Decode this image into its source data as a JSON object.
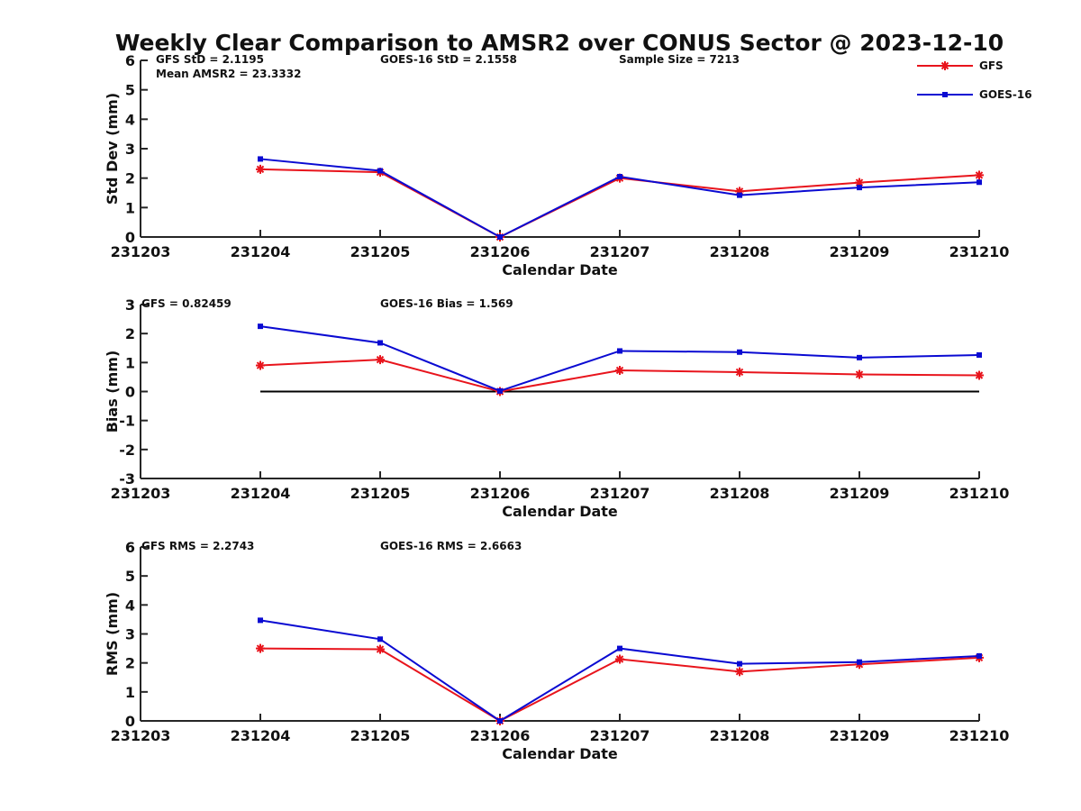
{
  "title": "Weekly Clear Comparison to AMSR2 over CONUS Sector @ 2023-12-10",
  "colors": {
    "gfs": "#e8141c",
    "goes": "#0a0ad2",
    "axis": "#262626",
    "zero_line": "#000000"
  },
  "legend": {
    "placement": "top-right",
    "entries": [
      {
        "label": "GFS",
        "color": "#e8141c",
        "marker": "asterisk"
      },
      {
        "label": "GOES-16",
        "color": "#0a0ad2",
        "marker": "square"
      }
    ]
  },
  "chart_data": [
    {
      "type": "line",
      "xlabel": "Calendar Date",
      "ylabel": "Std Dev (mm)",
      "x": [
        231203,
        231204,
        231205,
        231206,
        231207,
        231208,
        231209,
        231210
      ],
      "xticklabels": [
        "231203",
        "231204",
        "231205",
        "231206",
        "231207",
        "231208",
        "231209",
        "231210"
      ],
      "ylim": [
        0,
        6
      ],
      "yticks": [
        0,
        1,
        2,
        3,
        4,
        5,
        6
      ],
      "zero_line": false,
      "annotations": {
        "gfs": "GFS StD = 2.1195",
        "goes": "GOES-16 StD = 2.1558",
        "extra": "Mean AMSR2 = 23.3332",
        "sample": "Sample Size = 7213"
      },
      "series": [
        {
          "name": "GFS",
          "x": [
            231204,
            231205,
            231206,
            231207,
            231208,
            231209,
            231210
          ],
          "values": [
            2.3,
            2.2,
            0.0,
            2.0,
            1.55,
            1.85,
            2.1
          ]
        },
        {
          "name": "GOES-16",
          "x": [
            231204,
            231205,
            231206,
            231207,
            231208,
            231209,
            231210
          ],
          "values": [
            2.65,
            2.25,
            0.0,
            2.05,
            1.42,
            1.68,
            1.86
          ]
        }
      ]
    },
    {
      "type": "line",
      "xlabel": "Calendar Date",
      "ylabel": "Bias (mm)",
      "x": [
        231203,
        231204,
        231205,
        231206,
        231207,
        231208,
        231209,
        231210
      ],
      "xticklabels": [
        "231203",
        "231204",
        "231205",
        "231206",
        "231207",
        "231208",
        "231209",
        "231210"
      ],
      "ylim": [
        -3,
        3
      ],
      "yticks": [
        -3,
        -2,
        -1,
        0,
        1,
        2,
        3
      ],
      "zero_line": true,
      "annotations": {
        "gfs": "GFS = 0.82459",
        "goes": "GOES-16 Bias  = 1.569"
      },
      "series": [
        {
          "name": "GFS",
          "x": [
            231204,
            231205,
            231206,
            231207,
            231208,
            231209,
            231210
          ],
          "values": [
            0.9,
            1.1,
            0.0,
            0.73,
            0.67,
            0.59,
            0.56
          ]
        },
        {
          "name": "GOES-16",
          "x": [
            231204,
            231205,
            231206,
            231207,
            231208,
            231209,
            231210
          ],
          "values": [
            2.25,
            1.68,
            0.02,
            1.4,
            1.36,
            1.17,
            1.26
          ]
        }
      ]
    },
    {
      "type": "line",
      "xlabel": "Calendar Date",
      "ylabel": "RMS (mm)",
      "x": [
        231203,
        231204,
        231205,
        231206,
        231207,
        231208,
        231209,
        231210
      ],
      "xticklabels": [
        "231203",
        "231204",
        "231205",
        "231206",
        "231207",
        "231208",
        "231209",
        "231210"
      ],
      "ylim": [
        0,
        6
      ],
      "yticks": [
        0,
        1,
        2,
        3,
        4,
        5,
        6
      ],
      "zero_line": false,
      "annotations": {
        "gfs": "GFS RMS = 2.2743",
        "goes": "GOES-16 RMS = 2.6663"
      },
      "series": [
        {
          "name": "GFS",
          "x": [
            231204,
            231205,
            231206,
            231207,
            231208,
            231209,
            231210
          ],
          "values": [
            2.5,
            2.47,
            0.0,
            2.13,
            1.7,
            1.95,
            2.18
          ]
        },
        {
          "name": "GOES-16",
          "x": [
            231204,
            231205,
            231206,
            231207,
            231208,
            231209,
            231210
          ],
          "values": [
            3.47,
            2.82,
            0.0,
            2.5,
            1.97,
            2.03,
            2.24
          ]
        }
      ]
    }
  ]
}
